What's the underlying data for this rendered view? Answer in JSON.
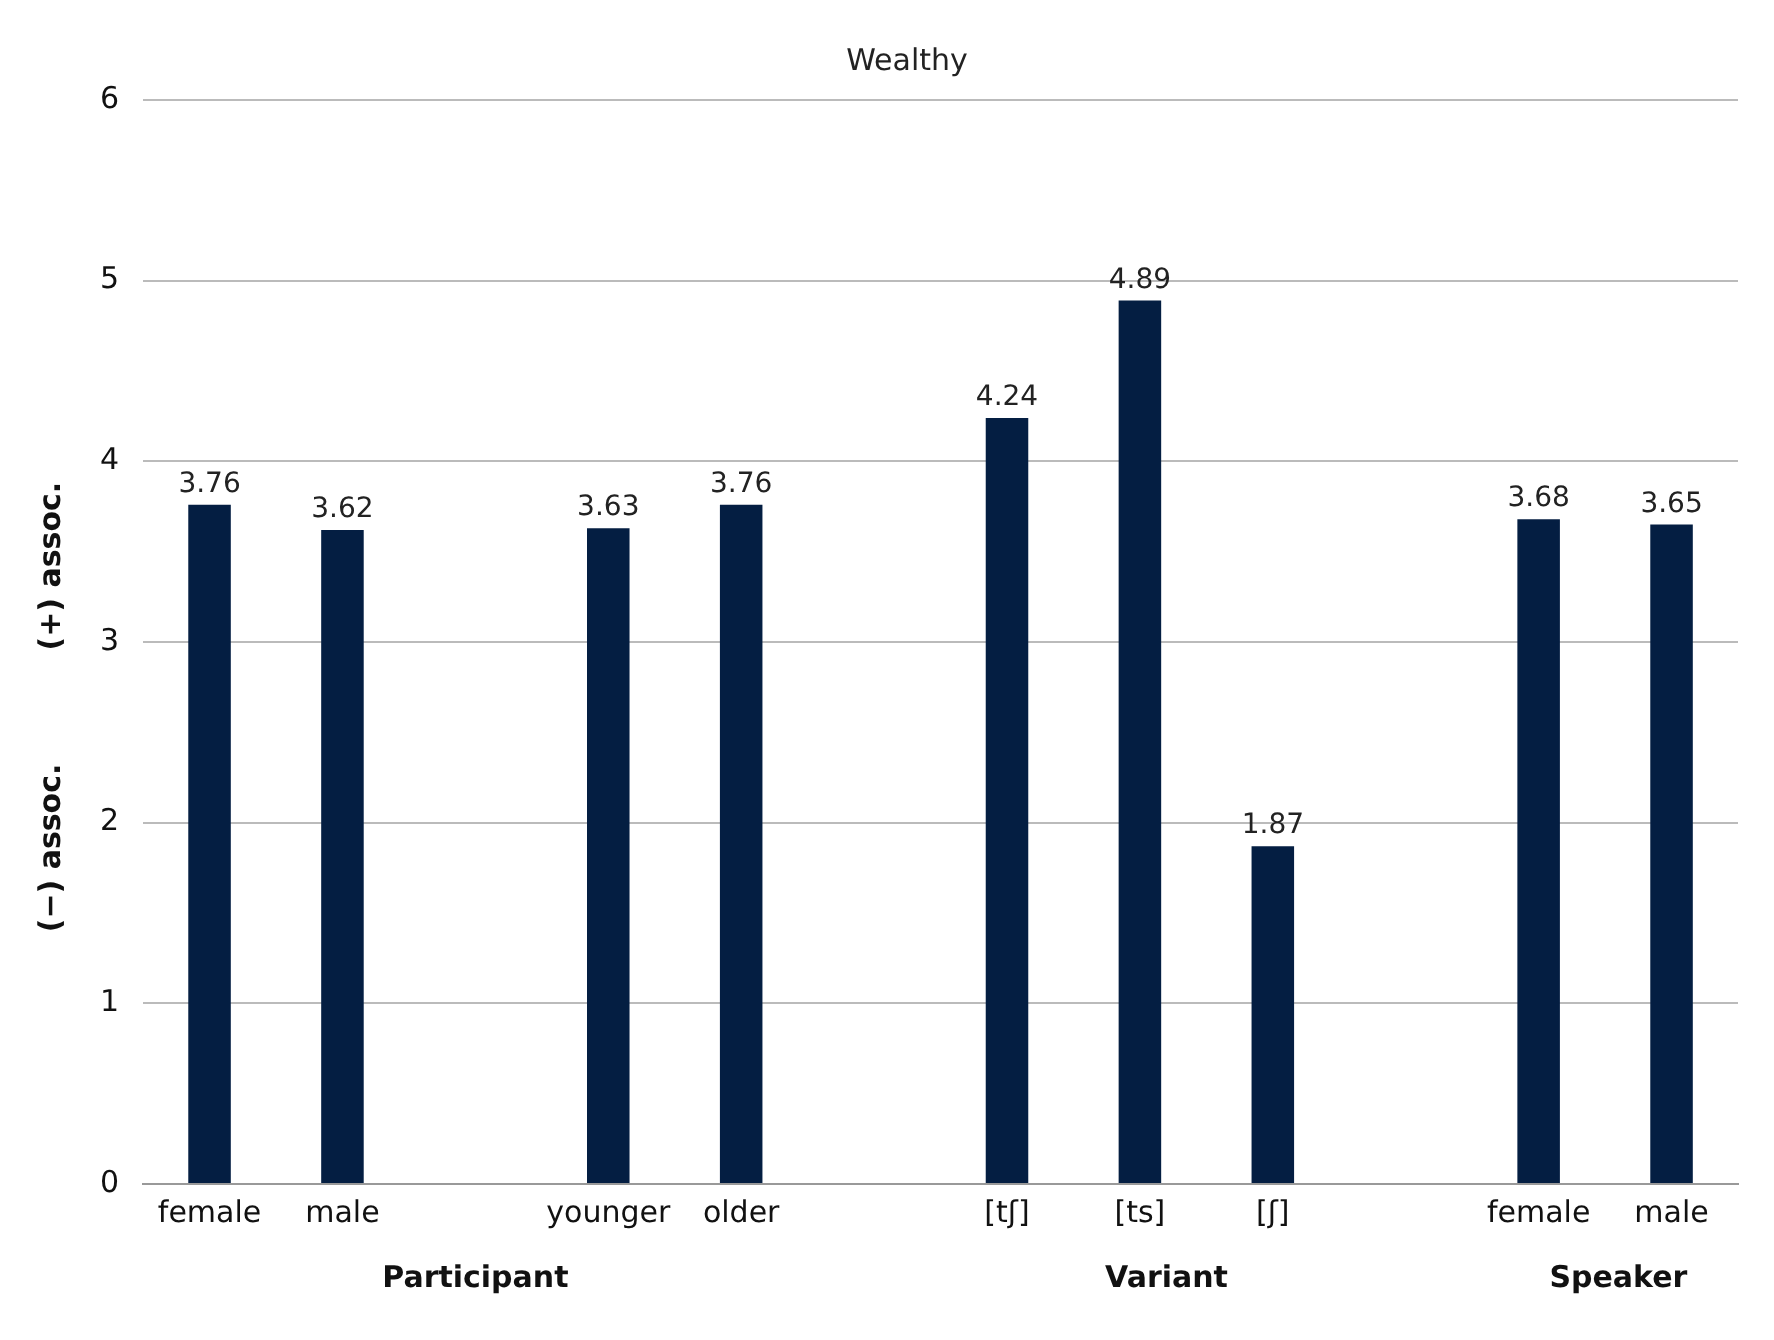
{
  "chart_data": {
    "type": "bar",
    "title": "Wealthy",
    "categories": [
      "female",
      "male",
      null,
      "younger",
      "older",
      null,
      "[tʃ]",
      "[ts]",
      "[ʃ]",
      null,
      "female",
      "male"
    ],
    "values": [
      3.76,
      3.62,
      null,
      3.63,
      3.76,
      null,
      4.24,
      4.89,
      1.87,
      null,
      3.68,
      3.65
    ],
    "color": "#041e42",
    "ylim": [
      0,
      6
    ],
    "yticks": [
      0,
      1,
      2,
      3,
      4,
      5,
      6
    ],
    "grid": "y",
    "data_labels": true,
    "legend": false,
    "annotations": [
      "(+) assoc.",
      "(−) assoc.",
      "Participant",
      "Variant",
      "Speaker"
    ]
  }
}
